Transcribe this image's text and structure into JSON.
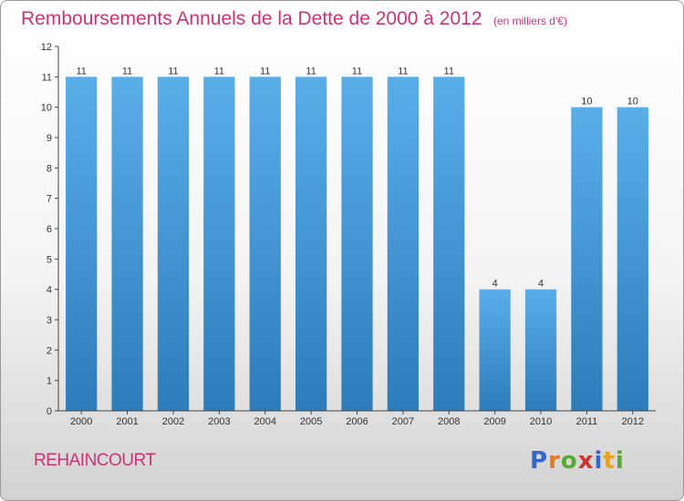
{
  "title": "Remboursements Annuels de la Dette de 2000 à 2012",
  "unit_note": "(en milliers d'€)",
  "place_name": "REHAINCOURT",
  "logo": {
    "text": "Proxiti",
    "letter_colors": [
      "#3366cc",
      "#e87722",
      "#5aa82f",
      "#cc3333",
      "#3366cc",
      "#e8a020",
      "#5aa82f"
    ]
  },
  "colors": {
    "title": "#cc3377",
    "bar_top": "#5aaee8",
    "bar_bottom": "#2e7cba",
    "axis": "#444444",
    "label": "#333333"
  },
  "chart_data": {
    "type": "bar",
    "title": "Remboursements Annuels de la Dette de 2000 à 2012",
    "ylabel": "",
    "xlabel": "",
    "categories": [
      "2000",
      "2001",
      "2002",
      "2003",
      "2004",
      "2005",
      "2006",
      "2007",
      "2008",
      "2009",
      "2010",
      "2011",
      "2012"
    ],
    "values": [
      11,
      11,
      11,
      11,
      11,
      11,
      11,
      11,
      11,
      4,
      4,
      10,
      10
    ],
    "data_labels": [
      "11",
      "11",
      "11",
      "11",
      "11",
      "11",
      "11",
      "11",
      "11",
      "4",
      "4",
      "10",
      "10"
    ],
    "ylim": [
      0,
      12
    ],
    "yticks": [
      0,
      1,
      2,
      3,
      4,
      5,
      6,
      7,
      8,
      9,
      10,
      11,
      12
    ],
    "grid": false,
    "legend": "none"
  }
}
